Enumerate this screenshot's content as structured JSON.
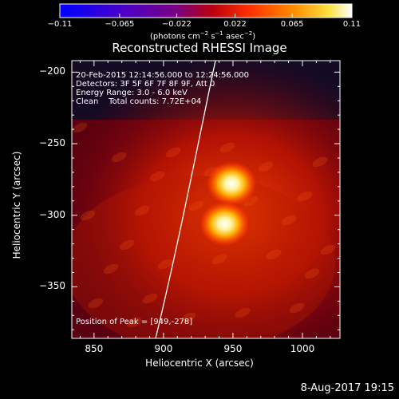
{
  "chart_data": {
    "type": "heatmap",
    "title": "Reconstructed RHESSI Image",
    "xlabel": "Heliocentric X (arcsec)",
    "ylabel": "Heliocentric Y (arcsec)",
    "xlim": [
      834,
      1027
    ],
    "ylim": [
      -386,
      -192
    ],
    "xticks": [
      850,
      900,
      950,
      1000
    ],
    "xtick_labels": [
      "850",
      "900",
      "950",
      "1000"
    ],
    "yticks": [
      -200,
      -250,
      -300,
      -350
    ],
    "ytick_labels": [
      "−200",
      "−250",
      "−300",
      "−350"
    ],
    "colorbar": {
      "ticks": [
        -0.11,
        -0.065,
        -0.022,
        0.022,
        0.065,
        0.11
      ],
      "tick_labels": [
        "−0.11",
        "−0.065",
        "−0.022",
        "0.022",
        "0.065",
        "0.11"
      ],
      "range": [
        -0.11,
        0.11
      ],
      "units_label": "(photons cm^-2 s^-1 asec^-2)"
    },
    "sources": [
      {
        "x": 949,
        "y": -278,
        "peak": 0.11
      },
      {
        "x": 944,
        "y": -306,
        "peak": 0.1
      }
    ],
    "info_lines": [
      "20-Feb-2015 12:14:56.000 to 12:24:56.000",
      "Detectors: 3F 5F 6F 7F 8F 9F, Att 0",
      "Energy Range: 3.0 - 6.0 keV",
      "Clean    Total counts: 7.72E+04"
    ],
    "peak_text": "Position of Peak = [949,-278]",
    "grid": false,
    "colors": {
      "colormap": "rhessi-blue-purple-red-yellow-white",
      "limb_line": "#ffffff"
    }
  },
  "footer": {
    "date": "8-Aug-2017 19:15"
  }
}
